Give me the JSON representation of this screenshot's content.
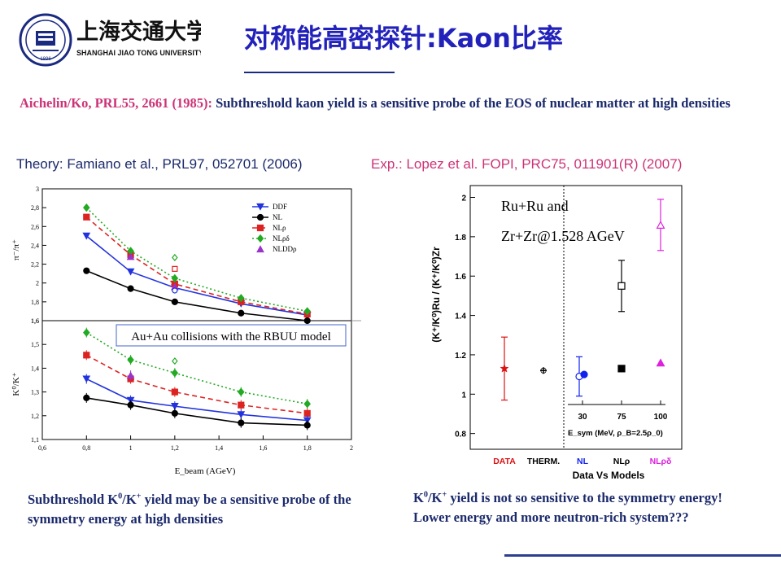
{
  "header": {
    "title": "对称能高密探针:Kaon比率",
    "logo": {
      "name_cn": "上海交通大学",
      "name_en": "SHANGHAI JIAO TONG UNIVERSITY",
      "year": "1896"
    }
  },
  "citation": {
    "ref": "Aichelin/Ko, PRL55, 2661 (1985):",
    "text": "Subthreshold kaon yield is a sensitive probe of the EOS of nuclear matter at high densities"
  },
  "labels": {
    "theory": "Theory: Famiano et al., PRL97, 052701 (2006)",
    "experiment": "Exp.: Lopez et al. FOPI, PRC75, 011901(R) (2007)"
  },
  "captions": {
    "left": {
      "pre": "Subthreshold K",
      "sup1": "0",
      "mid": "/K",
      "sup2": "+",
      "post": " yield may be a sensitive probe of the symmetry energy at high densities"
    },
    "right": {
      "pre": "K",
      "sup1": "0",
      "mid": "/K",
      "sup2": "+",
      "post": " yield is not so sensitive to the symmetry energy! Lower energy and more neutron-rich system???"
    }
  },
  "colors": {
    "title": "#2222bb",
    "reference": "#cc3377",
    "text": "#1b2a6b"
  },
  "chart_data": [
    {
      "type": "line",
      "panel": "top",
      "ylabel": "π⁻/π⁺",
      "xlim": [
        0.6,
        2.0
      ],
      "ylim": [
        1.6,
        3.0
      ],
      "yticks": [
        "1,6",
        "1,8",
        "2",
        "2,2",
        "2,4",
        "2,6",
        "2,8",
        "3"
      ],
      "x": [
        0.8,
        1.0,
        1.2,
        1.5,
        1.8
      ],
      "series": [
        {
          "name": "DDF",
          "color": "#2233dd",
          "style": "solid",
          "marker": "triangle-down",
          "values": [
            2.5,
            2.12,
            1.95,
            1.78,
            1.66
          ]
        },
        {
          "name": "NL",
          "color": "#000000",
          "style": "solid",
          "marker": "circle",
          "values": [
            2.13,
            1.94,
            1.8,
            1.68,
            1.6
          ]
        },
        {
          "name": "NLρ",
          "color": "#dd2222",
          "style": "dashed",
          "marker": "square",
          "values": [
            2.7,
            2.3,
            1.99,
            1.8,
            1.67
          ]
        },
        {
          "name": "NLρδ",
          "color": "#22aa22",
          "style": "dotted",
          "marker": "diamond",
          "values": [
            2.8,
            2.34,
            2.05,
            1.84,
            1.7
          ]
        },
        {
          "name": "NLDDρ",
          "color": "#9933cc",
          "style": "none",
          "marker": "triangle-up",
          "values": [
            null,
            2.28,
            1.96,
            null,
            null
          ]
        }
      ],
      "open_markers": [
        {
          "x": 1.2,
          "y": 2.27,
          "marker": "diamond",
          "color": "#22aa22"
        },
        {
          "x": 1.2,
          "y": 2.15,
          "marker": "square",
          "color": "#dd2222"
        },
        {
          "x": 1.2,
          "y": 1.92,
          "marker": "circle",
          "color": "#2233dd"
        }
      ],
      "legend_position": "top-right"
    },
    {
      "type": "line",
      "panel": "bottom",
      "title": "Au+Au collisions with the RBUU model",
      "ylabel": "K⁰/K⁺",
      "xlabel": "E_beam (AGeV)",
      "xlim": [
        0.6,
        2.0
      ],
      "ylim": [
        1.1,
        1.6
      ],
      "xticks": [
        "0,6",
        "0,8",
        "1",
        "1,2",
        "1,4",
        "1,6",
        "1,8",
        "2"
      ],
      "yticks": [
        "1,1",
        "1,2",
        "1,3",
        "1,4",
        "1,5",
        "1,6"
      ],
      "x": [
        0.8,
        1.0,
        1.2,
        1.5,
        1.8
      ],
      "series": [
        {
          "name": "NLρδ",
          "color": "#22aa22",
          "style": "dotted",
          "marker": "diamond",
          "values": [
            1.55,
            1.435,
            1.38,
            1.3,
            1.25
          ]
        },
        {
          "name": "NLρ",
          "color": "#dd2222",
          "style": "dashed",
          "marker": "square",
          "values": [
            1.455,
            1.355,
            1.3,
            1.245,
            1.21
          ]
        },
        {
          "name": "DDF",
          "color": "#2233dd",
          "style": "solid",
          "marker": "triangle-down",
          "values": [
            1.355,
            1.265,
            1.24,
            1.205,
            1.18
          ]
        },
        {
          "name": "NL",
          "color": "#000000",
          "style": "solid",
          "marker": "circle",
          "values": [
            1.275,
            1.245,
            1.21,
            1.17,
            1.16
          ]
        },
        {
          "name": "NLDDρ",
          "color": "#9933cc",
          "style": "none",
          "marker": "triangle-up",
          "values": [
            null,
            1.37,
            null,
            null,
            null
          ]
        }
      ],
      "open_markers": [
        {
          "x": 1.2,
          "y": 1.43,
          "marker": "diamond",
          "color": "#22aa22"
        }
      ]
    },
    {
      "type": "scatter",
      "ylabel": "(K⁺/K⁰)Ru / (K⁺/K⁰)Zr",
      "xlabel": "Data Vs Models",
      "ylim": [
        0.72,
        2.06
      ],
      "yticks": [
        "0.8",
        "1",
        "1.2",
        "1.4",
        "1.6",
        "1.8",
        "2"
      ],
      "annotation_line1": "Ru+Ru and",
      "annotation_line2": "Zr+Zr@1.528 AGeV",
      "categories": [
        "DATA",
        "THERM.",
        "NL",
        "NLρ",
        "NLρδ"
      ],
      "category_colors": [
        "#dd1111",
        "#000000",
        "#1122ee",
        "#000000",
        "#dd22dd"
      ],
      "points": [
        {
          "category": "DATA",
          "value": 1.13,
          "err_low": 0.97,
          "err_high": 1.29,
          "color": "#dd1111",
          "marker": "star"
        },
        {
          "category": "THERM.",
          "value": 1.12,
          "color": "#000000",
          "marker": "cross"
        },
        {
          "category": "NL",
          "value": 1.09,
          "err_low": 0.99,
          "err_high": 1.19,
          "color": "#1122ee",
          "marker": "open-circle"
        },
        {
          "category": "NL",
          "value": 1.1,
          "color": "#1122ee",
          "marker": "filled-circle"
        },
        {
          "category": "NLρ",
          "value": 1.55,
          "err_low": 1.42,
          "err_high": 1.68,
          "color": "#000000",
          "marker": "open-square"
        },
        {
          "category": "NLρ",
          "value": 1.13,
          "color": "#000000",
          "marker": "filled-square"
        },
        {
          "category": "NLρδ",
          "value": 1.86,
          "err_low": 1.73,
          "err_high": 1.99,
          "color": "#dd22dd",
          "marker": "open-triangle"
        },
        {
          "category": "NLρδ",
          "value": 1.16,
          "color": "#dd22dd",
          "marker": "filled-triangle"
        }
      ],
      "inner_axis": {
        "label": "E_sym (MeV, ρ_B=2.5ρ_0)",
        "ticks": [
          "30",
          "75",
          "100"
        ]
      }
    }
  ]
}
